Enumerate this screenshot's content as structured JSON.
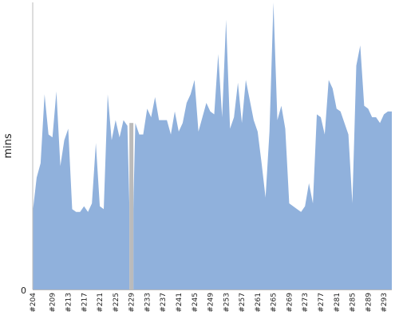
{
  "chart_data": {
    "type": "area",
    "title": "",
    "xlabel": "",
    "ylabel": "mins",
    "ylim": [
      0,
      100
    ],
    "grid": false,
    "legend": "none",
    "y_ticks": [
      "0"
    ],
    "x_tick_labels": [
      "#204",
      "#209",
      "#213",
      "#217",
      "#221",
      "#225",
      "#229",
      "#233",
      "#237",
      "#241",
      "#245",
      "#249",
      "#253",
      "#257",
      "#261",
      "#265",
      "#269",
      "#273",
      "#277",
      "#281",
      "#285",
      "#289",
      "#293"
    ],
    "x": [
      "#204",
      "#205",
      "#206",
      "#207",
      "#208",
      "#209",
      "#210",
      "#211",
      "#212",
      "#213",
      "#214",
      "#215",
      "#216",
      "#217",
      "#218",
      "#219",
      "#220",
      "#221",
      "#222",
      "#223",
      "#224",
      "#225",
      "#226",
      "#227",
      "#228",
      "#229",
      "#230",
      "#231",
      "#232",
      "#233",
      "#234",
      "#235",
      "#236",
      "#237",
      "#238",
      "#239",
      "#240",
      "#241",
      "#242",
      "#243",
      "#244",
      "#245",
      "#246",
      "#247",
      "#248",
      "#249",
      "#250",
      "#251",
      "#252",
      "#253",
      "#254",
      "#255",
      "#256",
      "#257",
      "#258",
      "#259",
      "#260",
      "#261",
      "#262",
      "#263",
      "#264",
      "#265",
      "#266",
      "#267",
      "#268",
      "#269",
      "#270",
      "#271",
      "#272",
      "#273",
      "#274",
      "#275",
      "#276",
      "#277",
      "#278",
      "#279",
      "#280",
      "#281",
      "#282",
      "#283",
      "#284",
      "#285",
      "#286",
      "#287",
      "#288",
      "#289",
      "#290",
      "#291",
      "#292",
      "#293",
      "#294",
      "#295"
    ],
    "values": [
      27,
      39,
      44,
      68,
      54,
      53,
      69,
      43,
      52,
      56,
      28,
      27,
      27,
      29,
      27,
      30,
      51,
      29,
      28,
      68,
      52,
      59,
      53,
      59,
      57,
      0,
      58,
      54,
      54,
      63,
      60,
      67,
      59,
      59,
      59,
      54,
      62,
      55,
      58,
      65,
      68,
      73,
      55,
      60,
      65,
      62,
      61,
      82,
      60,
      94,
      56,
      60,
      72,
      58,
      73,
      66,
      59,
      55,
      44,
      32,
      55,
      100,
      59,
      64,
      56,
      30,
      29,
      28,
      27,
      29,
      37,
      30,
      61,
      60,
      54,
      73,
      70,
      63,
      62,
      58,
      54,
      30,
      78,
      85,
      64,
      63,
      60,
      60,
      58,
      61,
      62,
      62
    ],
    "highlight_index": 25,
    "colors": {
      "fill": "#90b1dc",
      "highlight": "#bbbbbb",
      "axis": "#bbbbbb"
    }
  }
}
